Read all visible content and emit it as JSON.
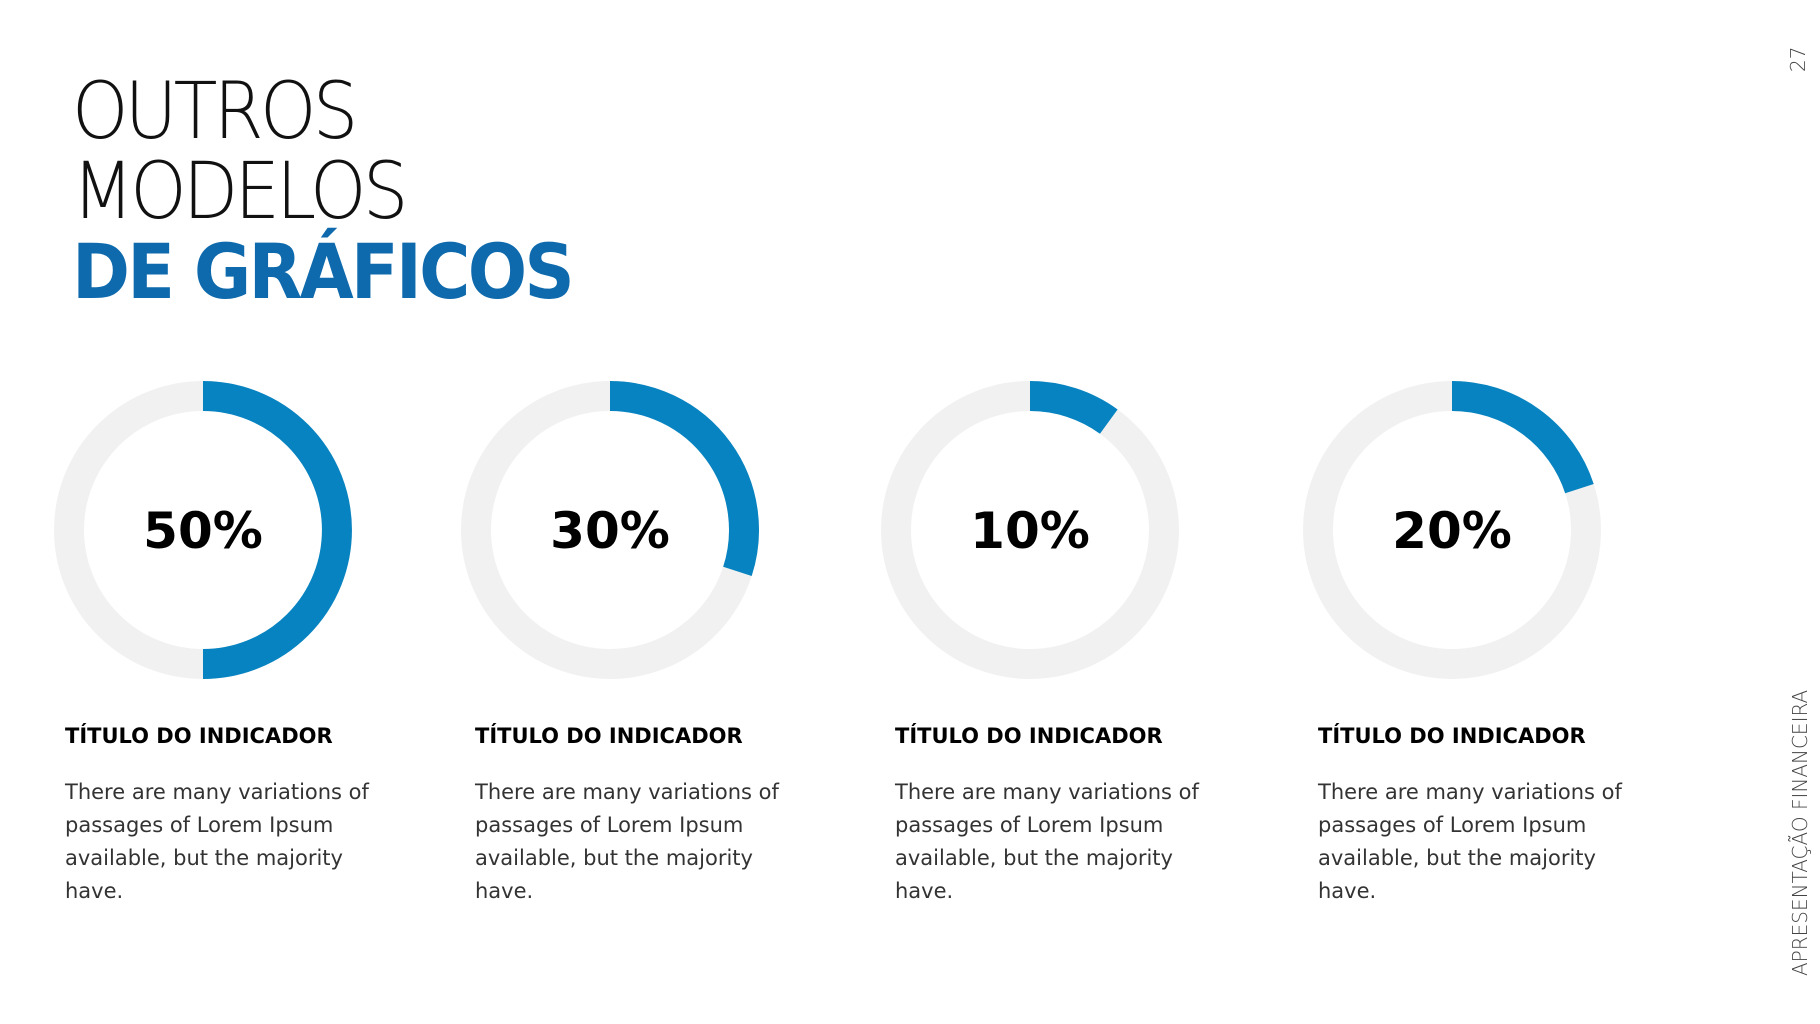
{
  "page_number": "27",
  "side_label": "APRESENTAÇÃO FINANCEIRA",
  "title": {
    "line1": "OUTROS",
    "line2": "MODELOS",
    "line3": "DE GRÁFICOS"
  },
  "colors": {
    "accent": "#0683c0",
    "track": "#f1f1f1",
    "title_accent": "#0e6aad"
  },
  "chart_data": [
    {
      "type": "pie",
      "subtype": "donut",
      "value": 50,
      "label": "50%",
      "title": "TÍTULO DO INDICADOR",
      "text": "There are many variations of passages of Lorem Ipsum available, but the majority have."
    },
    {
      "type": "pie",
      "subtype": "donut",
      "value": 30,
      "label": "30%",
      "title": "TÍTULO DO INDICADOR",
      "text": "There are many variations of passages of Lorem Ipsum available, but the majority have."
    },
    {
      "type": "pie",
      "subtype": "donut",
      "value": 10,
      "label": "10%",
      "title": "TÍTULO DO INDICADOR",
      "text": "There are many variations of passages of Lorem Ipsum available, but the majority have."
    },
    {
      "type": "pie",
      "subtype": "donut",
      "value": 20,
      "label": "20%",
      "title": "TÍTULO DO INDICADOR",
      "text": "There are many variations of passages of Lorem Ipsum available, but the majority have."
    }
  ]
}
